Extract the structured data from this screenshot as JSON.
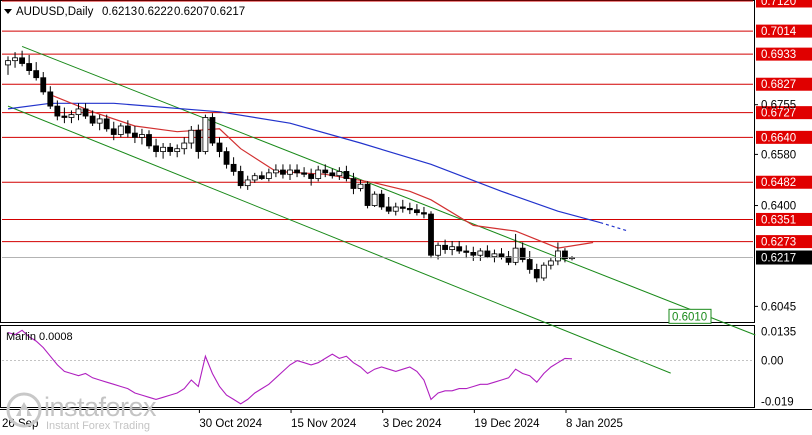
{
  "chart_data": [
    {
      "type": "candlestick",
      "title": "AUDUSD,Daily",
      "ohlc_header": [
        "0.6213",
        "0.6222",
        "0.6207",
        "0.6217"
      ],
      "current_price": "0.6217",
      "ylim": [
        0.599,
        0.712
      ],
      "y_ticks": [
        "0.6755",
        "0.6580",
        "0.6400",
        "0.6045"
      ],
      "levels": [
        {
          "label": "0.7120",
          "value": 0.712
        },
        {
          "label": "0.7014",
          "value": 0.7014
        },
        {
          "label": "0.6933",
          "value": 0.6933
        },
        {
          "label": "0.6827",
          "value": 0.6827
        },
        {
          "label": "0.6727",
          "value": 0.6727
        },
        {
          "label": "0.6640",
          "value": 0.664
        },
        {
          "label": "0.6482",
          "value": 0.6482
        },
        {
          "label": "0.6351",
          "value": 0.6351
        },
        {
          "label": "0.6273",
          "value": 0.6273
        }
      ],
      "target_label": "0.6010",
      "x_labels": [
        "30 Oct 2024",
        "15 Nov 2024",
        "3 Dec 2024",
        "19 Dec 2024",
        "8 Jan 2025"
      ],
      "x_first_label_partial": "26 Sep",
      "channel": {
        "upper": {
          "start_bar": 2,
          "start": 0.696,
          "end_bar": 88,
          "end": 0.612
        },
        "lower": {
          "start_bar": 0,
          "start": 0.675,
          "end_bar": 76,
          "end": 0.599
        }
      },
      "candles": [
        [
          0.6895,
          0.6925,
          0.686,
          0.691
        ],
        [
          0.691,
          0.694,
          0.6885,
          0.692
        ],
        [
          0.692,
          0.6945,
          0.689,
          0.69
        ],
        [
          0.69,
          0.693,
          0.686,
          0.6875
        ],
        [
          0.6875,
          0.6905,
          0.684,
          0.685
        ],
        [
          0.685,
          0.687,
          0.679,
          0.68
        ],
        [
          0.68,
          0.682,
          0.674,
          0.675
        ],
        [
          0.675,
          0.677,
          0.67,
          0.6715
        ],
        [
          0.6715,
          0.6745,
          0.669,
          0.671
        ],
        [
          0.671,
          0.6735,
          0.669,
          0.672
        ],
        [
          0.672,
          0.676,
          0.67,
          0.674
        ],
        [
          0.674,
          0.676,
          0.6705,
          0.6715
        ],
        [
          0.6715,
          0.6735,
          0.668,
          0.669
        ],
        [
          0.669,
          0.672,
          0.6665,
          0.6705
        ],
        [
          0.6705,
          0.672,
          0.666,
          0.667
        ],
        [
          0.667,
          0.6695,
          0.663,
          0.665
        ],
        [
          0.665,
          0.669,
          0.664,
          0.668
        ],
        [
          0.668,
          0.67,
          0.664,
          0.6655
        ],
        [
          0.6655,
          0.668,
          0.662,
          0.664
        ],
        [
          0.664,
          0.667,
          0.6615,
          0.665
        ],
        [
          0.665,
          0.6665,
          0.66,
          0.661
        ],
        [
          0.661,
          0.6635,
          0.657,
          0.659
        ],
        [
          0.659,
          0.662,
          0.6565,
          0.6605
        ],
        [
          0.6605,
          0.662,
          0.6575,
          0.659
        ],
        [
          0.659,
          0.6615,
          0.657,
          0.66
        ],
        [
          0.66,
          0.664,
          0.658,
          0.662
        ],
        [
          0.662,
          0.668,
          0.66,
          0.6665
        ],
        [
          0.6665,
          0.6685,
          0.6565,
          0.659
        ],
        [
          0.659,
          0.672,
          0.658,
          0.671
        ],
        [
          0.671,
          0.6725,
          0.661,
          0.662
        ],
        [
          0.662,
          0.664,
          0.657,
          0.659
        ],
        [
          0.659,
          0.6605,
          0.653,
          0.6545
        ],
        [
          0.6545,
          0.657,
          0.6505,
          0.652
        ],
        [
          0.652,
          0.654,
          0.646,
          0.647
        ],
        [
          0.647,
          0.6505,
          0.6455,
          0.649
        ],
        [
          0.649,
          0.6515,
          0.648,
          0.6505
        ],
        [
          0.6505,
          0.652,
          0.649,
          0.6495
        ],
        [
          0.6495,
          0.653,
          0.6485,
          0.6515
        ],
        [
          0.6515,
          0.6545,
          0.65,
          0.6525
        ],
        [
          0.6525,
          0.6545,
          0.6495,
          0.651
        ],
        [
          0.651,
          0.6545,
          0.649,
          0.6525
        ],
        [
          0.6525,
          0.6545,
          0.65,
          0.6515
        ],
        [
          0.6515,
          0.6535,
          0.65,
          0.651
        ],
        [
          0.651,
          0.653,
          0.647,
          0.6495
        ],
        [
          0.6495,
          0.654,
          0.6485,
          0.6525
        ],
        [
          0.6525,
          0.6545,
          0.65,
          0.6515
        ],
        [
          0.6515,
          0.653,
          0.6495,
          0.6505
        ],
        [
          0.6505,
          0.6535,
          0.649,
          0.652
        ],
        [
          0.652,
          0.654,
          0.6485,
          0.6495
        ],
        [
          0.6495,
          0.6515,
          0.644,
          0.646
        ],
        [
          0.646,
          0.649,
          0.645,
          0.6475
        ],
        [
          0.6475,
          0.6485,
          0.639,
          0.64
        ],
        [
          0.64,
          0.645,
          0.6395,
          0.644
        ],
        [
          0.644,
          0.6455,
          0.6385,
          0.6395
        ],
        [
          0.6395,
          0.643,
          0.637,
          0.638
        ],
        [
          0.638,
          0.641,
          0.6365,
          0.6395
        ],
        [
          0.6395,
          0.642,
          0.6375,
          0.639
        ],
        [
          0.639,
          0.641,
          0.637,
          0.6385
        ],
        [
          0.6385,
          0.6405,
          0.6365,
          0.6375
        ],
        [
          0.6375,
          0.6395,
          0.6355,
          0.637
        ],
        [
          0.637,
          0.638,
          0.6215,
          0.6225
        ],
        [
          0.6225,
          0.627,
          0.621,
          0.626
        ],
        [
          0.626,
          0.628,
          0.623,
          0.6245
        ],
        [
          0.6245,
          0.6275,
          0.6225,
          0.6255
        ],
        [
          0.6255,
          0.6275,
          0.623,
          0.624
        ],
        [
          0.624,
          0.626,
          0.6215,
          0.6235
        ],
        [
          0.6235,
          0.6255,
          0.6205,
          0.6225
        ],
        [
          0.6225,
          0.625,
          0.6205,
          0.624
        ],
        [
          0.624,
          0.626,
          0.6215,
          0.622
        ],
        [
          0.622,
          0.6245,
          0.62,
          0.623
        ],
        [
          0.623,
          0.625,
          0.621,
          0.622
        ],
        [
          0.622,
          0.624,
          0.619,
          0.62
        ],
        [
          0.62,
          0.63,
          0.619,
          0.625
        ],
        [
          0.625,
          0.627,
          0.62,
          0.621
        ],
        [
          0.621,
          0.624,
          0.616,
          0.6175
        ],
        [
          0.6175,
          0.6195,
          0.613,
          0.6145
        ],
        [
          0.6145,
          0.62,
          0.6135,
          0.619
        ],
        [
          0.619,
          0.6215,
          0.6175,
          0.6205
        ],
        [
          0.6205,
          0.627,
          0.619,
          0.624
        ],
        [
          0.624,
          0.625,
          0.62,
          0.6213
        ],
        [
          0.6213,
          0.6222,
          0.6207,
          0.6217
        ]
      ],
      "ma_blue": {
        "start_bar": 0,
        "end_bar": 88,
        "points": [
          [
            0,
            0.674
          ],
          [
            6,
            0.676
          ],
          [
            15,
            0.676
          ],
          [
            30,
            0.673
          ],
          [
            40,
            0.669
          ],
          [
            50,
            0.662
          ],
          [
            60,
            0.6545
          ],
          [
            70,
            0.645
          ],
          [
            78,
            0.638
          ],
          [
            84,
            0.634
          ],
          [
            88,
            0.631
          ]
        ],
        "dashed_from_bar": 85
      },
      "ma_red": {
        "points": [
          [
            6,
            0.679
          ],
          [
            12,
            0.673
          ],
          [
            18,
            0.668
          ],
          [
            24,
            0.666
          ],
          [
            30,
            0.667
          ],
          [
            33,
            0.66
          ],
          [
            38,
            0.652
          ],
          [
            45,
            0.651
          ],
          [
            52,
            0.648
          ],
          [
            57,
            0.645
          ],
          [
            60,
            0.642
          ],
          [
            66,
            0.633
          ],
          [
            72,
            0.631
          ],
          [
            78,
            0.625
          ],
          [
            83,
            0.627
          ]
        ]
      }
    },
    {
      "type": "line",
      "title": "Marlin 0.0008",
      "ylim": [
        -0.0215,
        0.016
      ],
      "y_ticks": [
        "0.0135",
        "0.00",
        "-0.019"
      ],
      "series": [
        {
          "values": [
            0.013,
            0.012,
            0.014,
            0.011,
            0.009,
            0.006,
            0.002,
            -0.002,
            -0.005,
            -0.006,
            -0.007,
            -0.006,
            -0.008,
            -0.009,
            -0.01,
            -0.011,
            -0.012,
            -0.013,
            -0.015,
            -0.016,
            -0.017,
            -0.018,
            -0.017,
            -0.016,
            -0.015,
            -0.013,
            -0.009,
            -0.012,
            0.002,
            -0.006,
            -0.012,
            -0.016,
            -0.018,
            -0.02,
            -0.018,
            -0.015,
            -0.013,
            -0.011,
            -0.008,
            -0.005,
            -0.002,
            0.0,
            -0.001,
            -0.002,
            -0.001,
            0.001,
            0.003,
            0.001,
            0.002,
            -0.001,
            -0.003,
            -0.006,
            -0.004,
            -0.003,
            -0.004,
            -0.005,
            -0.004,
            -0.003,
            -0.005,
            -0.009,
            -0.018,
            -0.015,
            -0.014,
            -0.014,
            -0.013,
            -0.013,
            -0.012,
            -0.011,
            -0.011,
            -0.01,
            -0.009,
            -0.008,
            -0.004,
            -0.006,
            -0.007,
            -0.01,
            -0.006,
            -0.003,
            -0.001,
            0.001,
            0.0008
          ]
        }
      ]
    }
  ],
  "watermark": {
    "name": "instaforex",
    "tagline": "Instant Forex Trading"
  }
}
